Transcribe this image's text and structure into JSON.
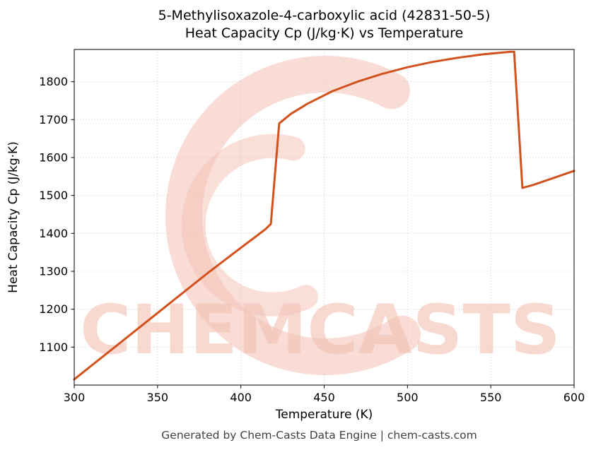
{
  "title_line1": "5-Methylisoxazole-4-carboxylic acid (42831-50-5)",
  "title_line2": "Heat Capacity Cp (J/kg·K) vs Temperature",
  "footer": "Generated by Chem-Casts Data Engine | chem-casts.com",
  "watermark": {
    "text": "CHEMCASTS",
    "color": "#f3c0b2",
    "logo": "c-ring-logo"
  },
  "chart_data": {
    "type": "line",
    "title": "5-Methylisoxazole-4-carboxylic acid (42831-50-5) Heat Capacity Cp (J/kg·K) vs Temperature",
    "xlabel": "Temperature (K)",
    "ylabel": "Heat Capacity Cp (J/kg·K)",
    "xlim": [
      300,
      600
    ],
    "ylim": [
      1000,
      1885
    ],
    "xticks": [
      300,
      350,
      400,
      450,
      500,
      550,
      600
    ],
    "yticks": [
      1100,
      1200,
      1300,
      1400,
      1500,
      1600,
      1700,
      1800
    ],
    "grid": true,
    "line_color": "#d2521e",
    "series": [
      {
        "name": "Heat Capacity Cp",
        "x": [
          300,
          320,
          340,
          360,
          380,
          400,
          410,
          415,
          418,
          423,
          430,
          440,
          455,
          470,
          485,
          500,
          515,
          530,
          545,
          555,
          562,
          564,
          569,
          575,
          585,
          600
        ],
        "y": [
          1015,
          1085,
          1155,
          1225,
          1295,
          1362,
          1395,
          1412,
          1425,
          1690,
          1715,
          1742,
          1775,
          1800,
          1821,
          1838,
          1852,
          1863,
          1872,
          1876,
          1879,
          1879,
          1520,
          1527,
          1542,
          1565
        ]
      }
    ]
  }
}
